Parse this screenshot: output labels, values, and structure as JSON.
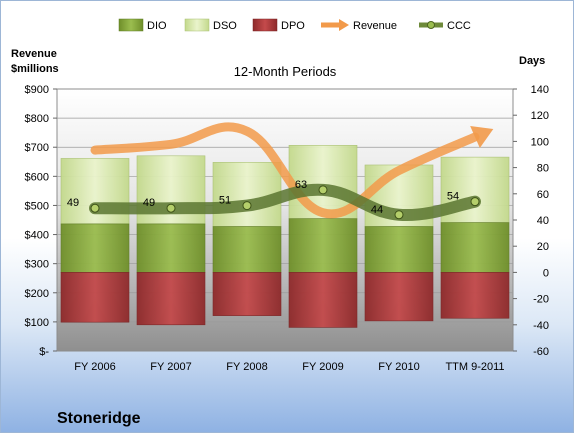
{
  "chart_data": {
    "type": "bar",
    "title": "12-Month Periods",
    "company": "Stoneridge",
    "left_axis_label": "Revenue\n$millions",
    "right_axis_label": "Days",
    "categories": [
      "FY 2006",
      "FY 2007",
      "FY 2008",
      "FY 2009",
      "FY 2010",
      "TTM 9-2011"
    ],
    "left_axis": {
      "min": 0,
      "max": 900,
      "step": 100,
      "tick_labels": [
        "$-",
        "$100",
        "$200",
        "$300",
        "$400",
        "$500",
        "$600",
        "$700",
        "$800",
        "$900"
      ]
    },
    "right_axis": {
      "min": -60,
      "max": 140,
      "step": 20,
      "tick_labels": [
        "-60",
        "-40",
        "-20",
        "0",
        "20",
        "40",
        "60",
        "80",
        "100",
        "120",
        "140"
      ]
    },
    "series": [
      {
        "name": "DIO",
        "color": "#86a83b",
        "values": [
          37,
          37,
          35,
          41,
          35,
          38
        ]
      },
      {
        "name": "DSO",
        "color": "#d6e8a6",
        "values": [
          50,
          52,
          49,
          56,
          47,
          50
        ]
      },
      {
        "name": "DPO",
        "color": "#b0393a",
        "values": [
          38,
          40,
          33,
          42,
          37,
          35
        ]
      },
      {
        "name": "Revenue",
        "color": "#f29a4a",
        "values": [
          690,
          710,
          755,
          475,
          620,
          735
        ]
      },
      {
        "name": "CCC",
        "color": "#6e8a3a",
        "values": [
          49,
          49,
          51,
          63,
          44,
          54
        ]
      }
    ],
    "ccc_labels": [
      "49",
      "49",
      "51",
      "63",
      "44",
      "54"
    ],
    "grid": true,
    "legend": "top"
  }
}
